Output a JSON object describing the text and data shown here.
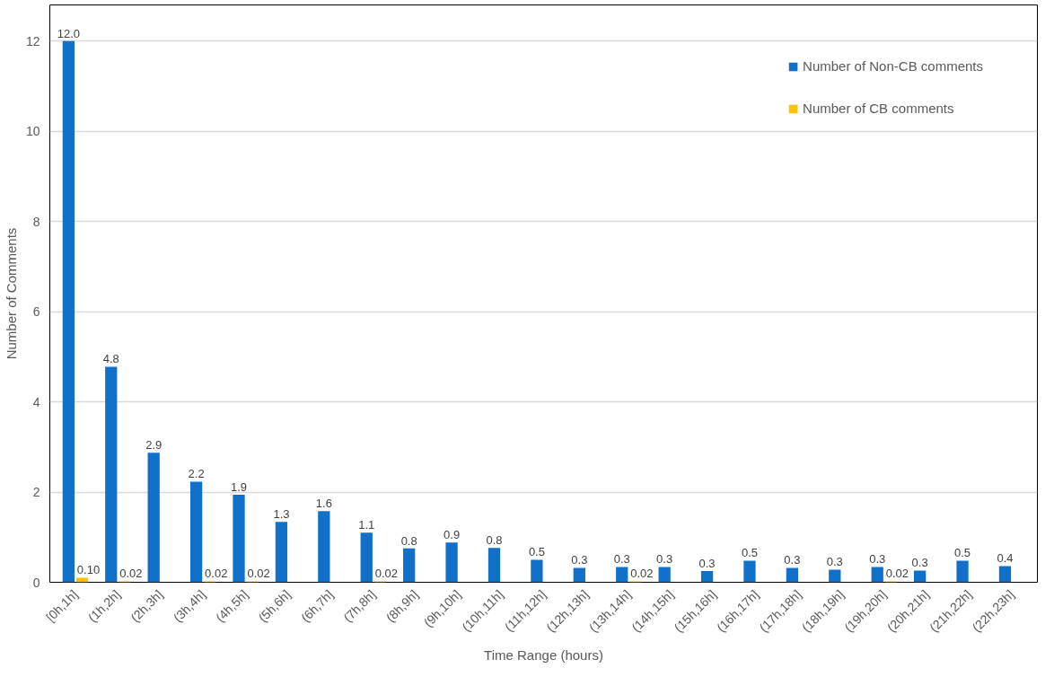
{
  "chart_data": {
    "type": "bar",
    "xlabel": "Time Range (hours)",
    "ylabel": "Number of Comments",
    "categories": [
      "[0h,1h]",
      "(1h,2h]",
      "(2h,3h]",
      "(3h,4h]",
      "(4h,5h]",
      "(5h,6h]",
      "(6h,7h]",
      "(7h,8h]",
      "(8h,9h]",
      "(9h,10h]",
      "(10h,11h]",
      "(11h,12h]",
      "(12h,13h]",
      "(13h,14h]",
      "(14h,15h]",
      "(15h,16h]",
      "(16h,17h]",
      "(17h,18h]",
      "(18h,19h]",
      "(19h,20h]",
      "(20h,21h]",
      "(21h,22h]",
      "(22h,23h]"
    ],
    "series": [
      {
        "name": "Number of Non-CB comments",
        "color": "#1170c8",
        "values": [
          12.0,
          4.78,
          2.87,
          2.23,
          1.94,
          1.34,
          1.58,
          1.1,
          0.75,
          0.88,
          0.76,
          0.5,
          0.32,
          0.34,
          0.34,
          0.25,
          0.48,
          0.32,
          0.28,
          0.34,
          0.26,
          0.48,
          0.36
        ],
        "value_labels": [
          "12.0",
          "4.8",
          "2.9",
          "2.2",
          "1.9",
          "1.3",
          "1.6",
          "1.1",
          "0.8",
          "0.9",
          "0.8",
          "0.5",
          "0.3",
          "0.3",
          "0.3",
          "0.3",
          "0.5",
          "0.3",
          "0.3",
          "0.3",
          "0.3",
          "0.5",
          "0.4"
        ]
      },
      {
        "name": "Number of CB comments",
        "color": "#ffc000",
        "values": [
          0.1,
          0.02,
          null,
          0.02,
          0.02,
          null,
          null,
          0.02,
          null,
          null,
          null,
          null,
          null,
          0.02,
          null,
          null,
          null,
          null,
          null,
          0.02,
          null,
          null,
          null
        ],
        "value_labels": [
          "0.10",
          "0.02",
          null,
          "0.02",
          "0.02",
          null,
          null,
          "0.02",
          null,
          null,
          null,
          null,
          null,
          "0.02",
          null,
          null,
          null,
          null,
          null,
          "0.02",
          null,
          null,
          null
        ]
      }
    ],
    "ylim": [
      0,
      12.8
    ],
    "yticks": [
      0,
      2,
      4,
      6,
      8,
      10,
      12
    ],
    "grid": "y",
    "legend": "top right"
  }
}
